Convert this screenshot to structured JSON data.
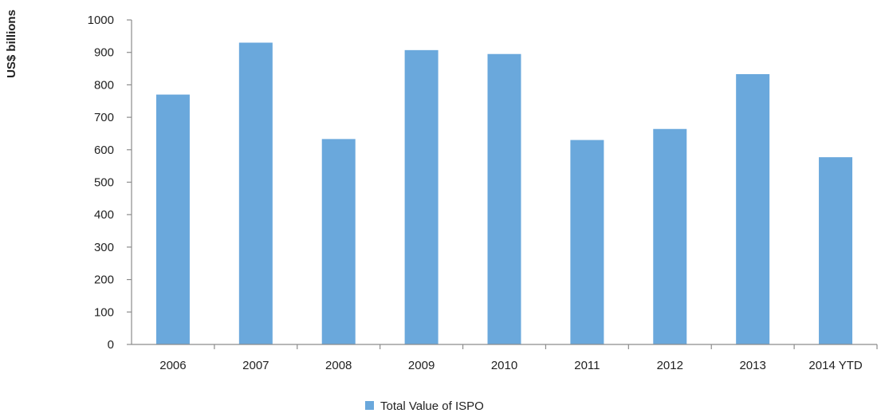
{
  "chart_data": {
    "type": "bar",
    "categories": [
      "2006",
      "2007",
      "2008",
      "2009",
      "2010",
      "2011",
      "2012",
      "2013",
      "2014 YTD"
    ],
    "series": [
      {
        "name": "Total Value of ISPO",
        "values": [
          770,
          930,
          633,
          907,
          895,
          630,
          664,
          833,
          577
        ],
        "color": "#6AA8DC"
      }
    ],
    "title": "",
    "xlabel": "",
    "ylabel": "US$ billions",
    "ylim": [
      0,
      1000
    ],
    "yticks": [
      "0",
      "100",
      "200",
      "300",
      "400",
      "500",
      "600",
      "700",
      "800",
      "900",
      "1000"
    ],
    "grid": false,
    "legend_position": "bottom"
  }
}
